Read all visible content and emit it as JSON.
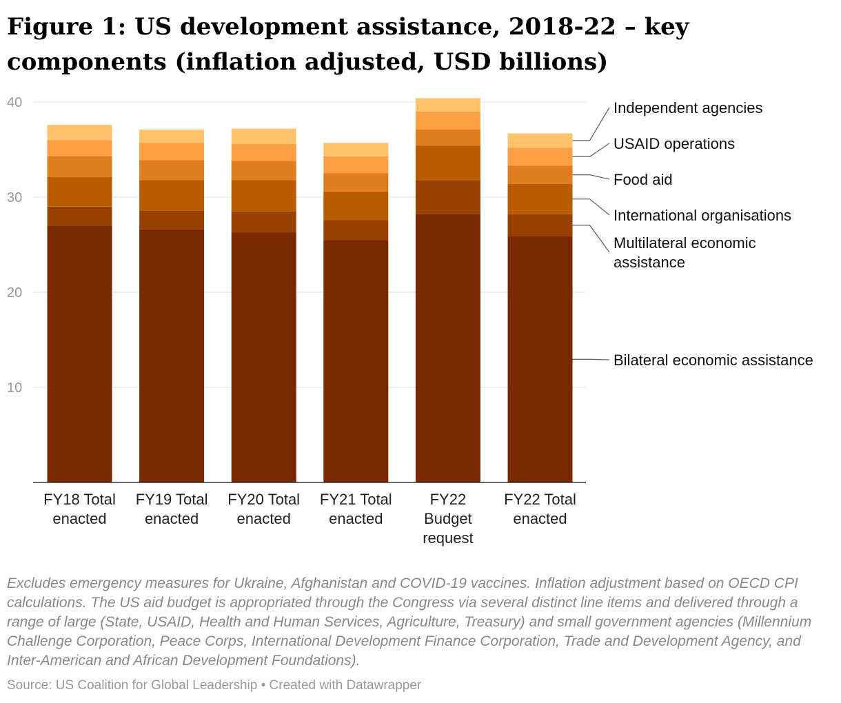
{
  "chart_data": {
    "type": "bar",
    "stacked": true,
    "title": "Figure 1: US development assistance, 2018-22 – key components (inflation adjusted, USD billions)",
    "categories": [
      [
        "FY18 Total",
        "enacted"
      ],
      [
        "FY19 Total",
        "enacted"
      ],
      [
        "FY20 Total",
        "enacted"
      ],
      [
        "FY21 Total",
        "enacted"
      ],
      [
        "FY22",
        "Budget",
        "request"
      ],
      [
        "FY22 Total",
        "enacted"
      ]
    ],
    "series": [
      {
        "name": "Bilateral economic assistance",
        "label_lines": [
          "Bilateral economic assistance"
        ],
        "color": "#7a2800",
        "values": [
          27.0,
          26.6,
          26.3,
          25.5,
          28.2,
          25.9
        ]
      },
      {
        "name": "Multilateral economic assistance",
        "label_lines": [
          "Multilateral economic",
          "assistance"
        ],
        "color": "#984000",
        "values": [
          2.0,
          2.0,
          2.2,
          2.1,
          3.6,
          2.3
        ]
      },
      {
        "name": "International organisations",
        "label_lines": [
          "International organisations"
        ],
        "color": "#b95b00",
        "values": [
          3.1,
          3.2,
          3.3,
          3.0,
          3.6,
          3.2
        ]
      },
      {
        "name": "Food aid",
        "label_lines": [
          "Food aid"
        ],
        "color": "#e07d20",
        "values": [
          2.2,
          2.1,
          2.0,
          1.9,
          1.7,
          1.9
        ]
      },
      {
        "name": "USAID operations",
        "label_lines": [
          "USAID operations"
        ],
        "color": "#fd9f44",
        "values": [
          1.7,
          1.8,
          1.8,
          1.8,
          1.9,
          1.9
        ]
      },
      {
        "name": "Independent agencies",
        "label_lines": [
          "Independent agencies"
        ],
        "color": "#ffc46b",
        "values": [
          1.6,
          1.4,
          1.6,
          1.4,
          1.4,
          1.5
        ]
      }
    ],
    "yticks": [
      10,
      20,
      30,
      40
    ],
    "ylim": [
      0,
      40
    ],
    "grid": true,
    "legend_placement": "right, direct labels",
    "xlabel": "",
    "ylabel": ""
  },
  "notes": "Excludes emergency measures for Ukraine, Afghanistan and COVID-19 vaccines. Inflation adjustment based on OECD CPI calculations. The US aid budget is appropriated through the Congress via several distinct line items and delivered through a range of large (State, USAID, Health and Human Services, Agriculture, Treasury) and small government agencies (Millennium Challenge Corporation, Peace Corps, International Development Finance Corporation, Trade and Development Agency, and Inter-American and African Development Foundations).",
  "source": "Source: US Coalition for Global Leadership • Created with Datawrapper"
}
